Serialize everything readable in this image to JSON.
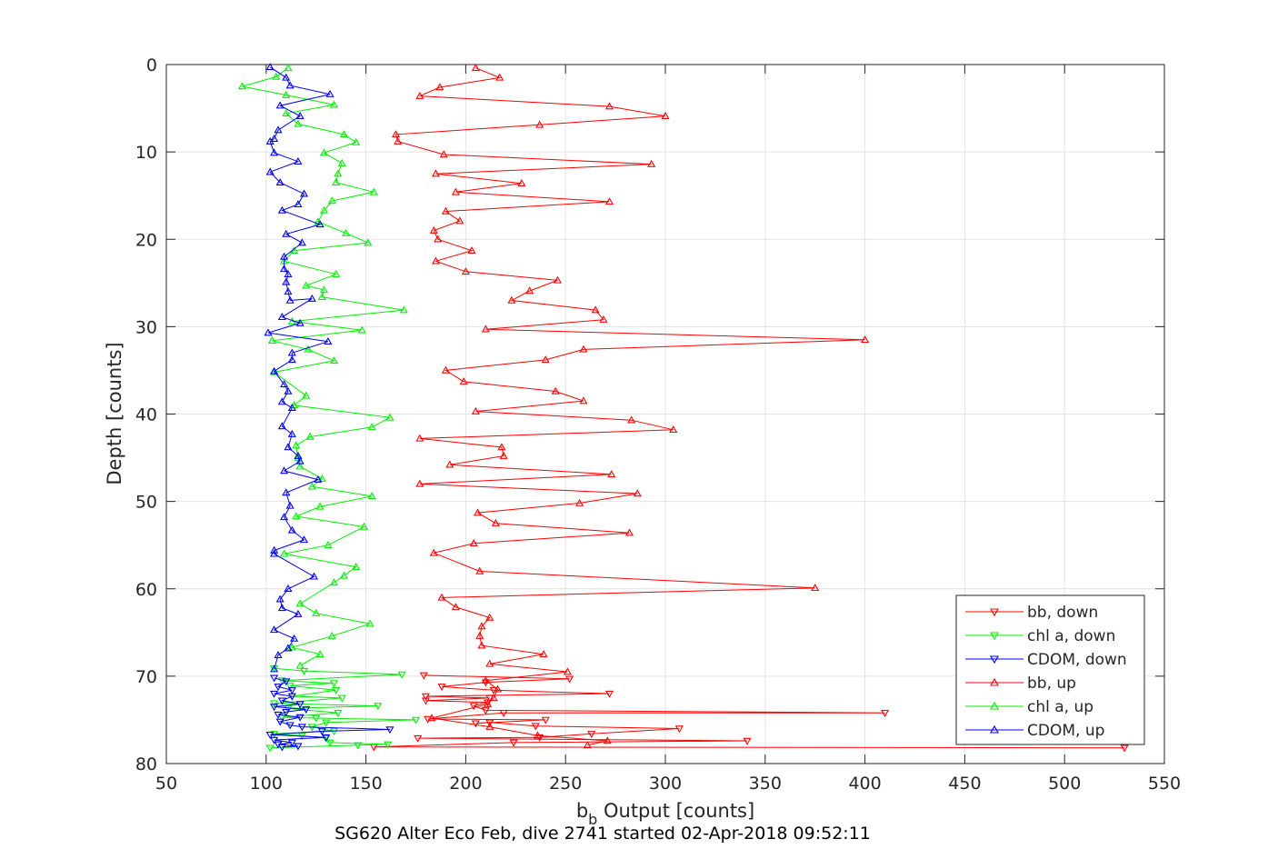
{
  "chart_data": {
    "type": "line",
    "xlim": [
      50,
      550
    ],
    "ylim": [
      0,
      80
    ],
    "y_reversed": true,
    "x_ticks": [
      50,
      100,
      150,
      200,
      250,
      300,
      350,
      400,
      450,
      500,
      550
    ],
    "y_ticks": [
      0,
      10,
      20,
      30,
      40,
      50,
      60,
      70,
      80
    ],
    "grid": true,
    "xlabel_main": "b",
    "xlabel_sub": "b",
    "xlabel_rest": " Output [counts]",
    "ylabel": "Depth [counts]",
    "caption": "SG620 Alter Eco Feb, dive 2741 started 02-Apr-2018 09:52:11",
    "legend_position": "bottom-right",
    "series": [
      {
        "name": "bb, down",
        "color": "#ff0000",
        "marker": "down",
        "points": [
          [
            530,
            78.2
          ],
          [
            154,
            78.1
          ],
          [
            224,
            77.6
          ],
          [
            341,
            77.4
          ],
          [
            176,
            77.1
          ],
          [
            237,
            77.0
          ],
          [
            263,
            76.6
          ],
          [
            307,
            76.0
          ],
          [
            235,
            75.7
          ],
          [
            212,
            75.3
          ],
          [
            205,
            75.4
          ],
          [
            240,
            75.0
          ],
          [
            181,
            74.9
          ],
          [
            219,
            74.2
          ],
          [
            410,
            74.2
          ],
          [
            210,
            73.9
          ],
          [
            204,
            73.4
          ],
          [
            211,
            73.0
          ],
          [
            180,
            72.8
          ],
          [
            212,
            72.5
          ],
          [
            180,
            72.3
          ],
          [
            272,
            72.0
          ],
          [
            214,
            71.6
          ],
          [
            188,
            71.2
          ],
          [
            210,
            70.7
          ],
          [
            252,
            70.3
          ],
          [
            179,
            69.9
          ]
        ]
      },
      {
        "name": "chl a, down",
        "color": "#00ee00",
        "marker": "down",
        "points": [
          [
            102,
            78.2
          ],
          [
            146,
            77.9
          ],
          [
            161,
            77.8
          ],
          [
            132,
            77.6
          ],
          [
            130,
            77.1
          ],
          [
            118,
            76.8
          ],
          [
            104,
            76.6
          ],
          [
            134,
            76.3
          ],
          [
            123,
            75.8
          ],
          [
            130,
            75.3
          ],
          [
            175,
            75.0
          ],
          [
            125,
            74.8
          ],
          [
            108,
            74.7
          ],
          [
            136,
            74.2
          ],
          [
            111,
            73.7
          ],
          [
            156,
            73.4
          ],
          [
            104,
            73.1
          ],
          [
            138,
            72.5
          ],
          [
            113,
            72.3
          ],
          [
            135,
            71.6
          ],
          [
            112,
            71.1
          ],
          [
            134,
            70.8
          ],
          [
            108,
            70.5
          ],
          [
            168,
            69.8
          ],
          [
            119,
            69.4
          ],
          [
            104,
            69.1
          ]
        ]
      },
      {
        "name": "CDOM, down",
        "color": "#0000ee",
        "marker": "down",
        "points": [
          [
            108,
            78.1
          ],
          [
            116,
            78.0
          ],
          [
            106,
            77.8
          ],
          [
            113,
            77.6
          ],
          [
            104,
            77.3
          ],
          [
            130,
            77.0
          ],
          [
            102,
            76.7
          ],
          [
            128,
            76.3
          ],
          [
            162,
            76.1
          ],
          [
            118,
            75.8
          ],
          [
            112,
            75.6
          ],
          [
            107,
            75.2
          ],
          [
            117,
            74.7
          ],
          [
            106,
            74.4
          ],
          [
            110,
            74.1
          ],
          [
            120,
            73.8
          ],
          [
            104,
            73.5
          ],
          [
            117,
            73.2
          ],
          [
            108,
            72.8
          ],
          [
            113,
            72.3
          ],
          [
            104,
            72.0
          ],
          [
            113,
            71.6
          ],
          [
            106,
            71.2
          ],
          [
            110,
            70.6
          ],
          [
            104,
            70.2
          ]
        ]
      },
      {
        "name": "bb, up",
        "color": "#ff0000",
        "marker": "up",
        "points": [
          [
            205,
            0.4
          ],
          [
            217,
            1.5
          ],
          [
            187,
            2.6
          ],
          [
            177,
            3.6
          ],
          [
            272,
            4.8
          ],
          [
            300,
            5.9
          ],
          [
            237,
            6.9
          ],
          [
            165,
            8.0
          ],
          [
            166,
            8.8
          ],
          [
            189,
            10.3
          ],
          [
            293,
            11.4
          ],
          [
            185,
            12.5
          ],
          [
            228,
            13.6
          ],
          [
            195,
            14.6
          ],
          [
            272,
            15.7
          ],
          [
            190,
            16.8
          ],
          [
            197,
            17.9
          ],
          [
            184,
            19.0
          ],
          [
            186,
            20.0
          ],
          [
            203,
            21.3
          ],
          [
            185,
            22.5
          ],
          [
            200,
            23.7
          ],
          [
            246,
            24.7
          ],
          [
            232,
            25.9
          ],
          [
            223,
            27.0
          ],
          [
            265,
            28.1
          ],
          [
            269,
            29.2
          ],
          [
            210,
            30.3
          ],
          [
            400,
            31.5
          ],
          [
            259,
            32.6
          ],
          [
            240,
            33.8
          ],
          [
            190,
            35.0
          ],
          [
            199,
            36.3
          ],
          [
            245,
            37.4
          ],
          [
            259,
            38.5
          ],
          [
            205,
            39.7
          ],
          [
            283,
            40.7
          ],
          [
            304,
            41.8
          ],
          [
            177,
            42.8
          ],
          [
            218,
            43.8
          ],
          [
            219,
            44.8
          ],
          [
            192,
            45.8
          ],
          [
            273,
            46.9
          ],
          [
            177,
            48.0
          ],
          [
            286,
            49.1
          ],
          [
            257,
            50.2
          ],
          [
            206,
            51.3
          ],
          [
            215,
            52.5
          ],
          [
            282,
            53.6
          ],
          [
            204,
            54.8
          ],
          [
            184,
            55.9
          ],
          [
            207,
            58.0
          ],
          [
            375,
            59.9
          ],
          [
            188,
            61.0
          ],
          [
            195,
            62.1
          ],
          [
            212,
            63.3
          ],
          [
            208,
            64.3
          ],
          [
            207,
            65.4
          ],
          [
            208,
            66.5
          ],
          [
            239,
            67.5
          ],
          [
            212,
            68.6
          ],
          [
            251,
            69.5
          ],
          [
            210,
            70.5
          ],
          [
            216,
            71.5
          ],
          [
            214,
            72.5
          ],
          [
            211,
            73.2
          ],
          [
            183,
            74.8
          ],
          [
            212,
            75.8
          ],
          [
            236,
            76.8
          ],
          [
            271,
            77.4
          ],
          [
            261,
            77.9
          ]
        ]
      },
      {
        "name": "chl a, up",
        "color": "#00ee00",
        "marker": "up",
        "points": [
          [
            111,
            0.4
          ],
          [
            105,
            1.4
          ],
          [
            88,
            2.5
          ],
          [
            110,
            3.5
          ],
          [
            134,
            4.6
          ],
          [
            110,
            5.6
          ],
          [
            116,
            6.8
          ],
          [
            139,
            8.0
          ],
          [
            145,
            8.9
          ],
          [
            129,
            10.1
          ],
          [
            138,
            11.3
          ],
          [
            136,
            12.5
          ],
          [
            135,
            13.5
          ],
          [
            154,
            14.6
          ],
          [
            133,
            15.6
          ],
          [
            129,
            16.7
          ],
          [
            126,
            18.0
          ],
          [
            140,
            19.3
          ],
          [
            151,
            20.4
          ],
          [
            114,
            21.3
          ],
          [
            109,
            22.5
          ],
          [
            135,
            24.0
          ],
          [
            120,
            25.3
          ],
          [
            129,
            25.8
          ],
          [
            128,
            26.6
          ],
          [
            169,
            28.1
          ],
          [
            113,
            29.4
          ],
          [
            148,
            30.4
          ],
          [
            103,
            31.6
          ],
          [
            121,
            32.6
          ],
          [
            134,
            33.9
          ],
          [
            104,
            35.2
          ],
          [
            120,
            37.9
          ],
          [
            114,
            39.0
          ],
          [
            162,
            40.4
          ],
          [
            153,
            41.5
          ],
          [
            122,
            42.6
          ],
          [
            115,
            43.6
          ],
          [
            116,
            45.0
          ],
          [
            117,
            46.0
          ],
          [
            128,
            47.4
          ],
          [
            123,
            48.3
          ],
          [
            153,
            49.4
          ],
          [
            127,
            50.6
          ],
          [
            115,
            51.7
          ],
          [
            149,
            52.9
          ],
          [
            131,
            55.0
          ],
          [
            109,
            56.0
          ],
          [
            145,
            57.5
          ],
          [
            139,
            58.5
          ],
          [
            134,
            59.3
          ],
          [
            117,
            61.7
          ],
          [
            125,
            62.8
          ],
          [
            152,
            64.0
          ],
          [
            133,
            65.4
          ],
          [
            113,
            66.7
          ],
          [
            127,
            67.5
          ],
          [
            117,
            68.8
          ]
        ]
      },
      {
        "name": "CDOM, up",
        "color": "#0000ee",
        "marker": "up",
        "points": [
          [
            102,
            0.3
          ],
          [
            110,
            1.5
          ],
          [
            112,
            2.4
          ],
          [
            132,
            3.4
          ],
          [
            107,
            4.7
          ],
          [
            117,
            5.9
          ],
          [
            106,
            7.5
          ],
          [
            104,
            8.5
          ],
          [
            102,
            8.8
          ],
          [
            104,
            10.1
          ],
          [
            116,
            11.1
          ],
          [
            102,
            12.3
          ],
          [
            107,
            13.5
          ],
          [
            119,
            14.8
          ],
          [
            116,
            16.0
          ],
          [
            108,
            16.7
          ],
          [
            127,
            18.3
          ],
          [
            110,
            19.4
          ],
          [
            118,
            20.4
          ],
          [
            109,
            22.0
          ],
          [
            109,
            23.4
          ],
          [
            111,
            24.0
          ],
          [
            110,
            24.9
          ],
          [
            111,
            26.0
          ],
          [
            112,
            27.0
          ],
          [
            123,
            26.8
          ],
          [
            108,
            28.9
          ],
          [
            117,
            29.6
          ],
          [
            101,
            30.7
          ],
          [
            131,
            31.7
          ],
          [
            113,
            33.0
          ],
          [
            113,
            33.8
          ],
          [
            104,
            35.1
          ],
          [
            109,
            36.6
          ],
          [
            111,
            37.4
          ],
          [
            108,
            38.6
          ],
          [
            113,
            39.3
          ],
          [
            108,
            41.4
          ],
          [
            113,
            42.3
          ],
          [
            111,
            43.8
          ],
          [
            116,
            44.8
          ],
          [
            117,
            45.4
          ],
          [
            109,
            46.5
          ],
          [
            126,
            47.5
          ],
          [
            110,
            49.0
          ],
          [
            112,
            50.5
          ],
          [
            109,
            51.8
          ],
          [
            113,
            53.3
          ],
          [
            119,
            54.4
          ],
          [
            104,
            55.6
          ],
          [
            104,
            56.0
          ],
          [
            124,
            58.6
          ],
          [
            111,
            60.0
          ],
          [
            107,
            61.2
          ],
          [
            108,
            62.2
          ],
          [
            116,
            62.9
          ],
          [
            104,
            64.7
          ],
          [
            114,
            65.7
          ],
          [
            111,
            66.8
          ],
          [
            106,
            67.6
          ],
          [
            104,
            69.2
          ]
        ]
      }
    ]
  }
}
